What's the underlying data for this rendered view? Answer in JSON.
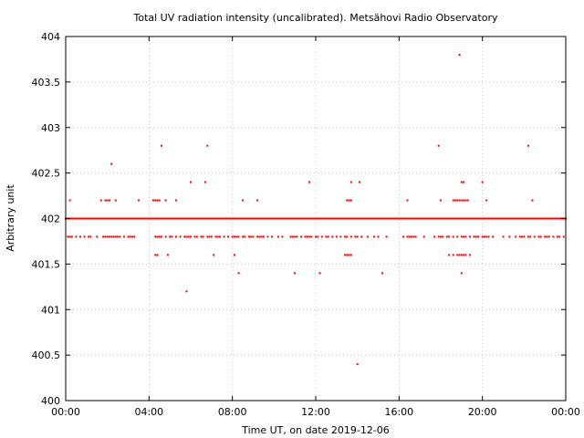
{
  "chart_data": {
    "type": "scatter",
    "title": "Total UV radiation intensity (uncalibrated). Metsähovi Radio Observatory",
    "xlabel": "Time UT, on date 2019-12-06",
    "ylabel": "Arbitrary unit",
    "x_unit": "hours UT",
    "xlim": [
      0,
      24
    ],
    "ylim": [
      400,
      404
    ],
    "x_ticks": [
      0,
      4,
      8,
      12,
      16,
      20,
      24
    ],
    "x_tick_labels": [
      "00:00",
      "04:00",
      "08:00",
      "12:00",
      "16:00",
      "20:00",
      "00:00"
    ],
    "y_ticks": [
      400,
      400.5,
      401,
      401.5,
      402,
      402.5,
      403,
      403.5,
      404
    ],
    "y_tick_labels": [
      "400",
      "400.5",
      "401",
      "401.5",
      "402",
      "402.5",
      "403",
      "403.5",
      "404"
    ],
    "grid": true,
    "legend": "none",
    "marker_color": "#ff0000",
    "baseline": {
      "y": 402.0,
      "x_range": [
        0,
        24
      ],
      "note": "near-continuous samples at 402.0 throughout the day"
    },
    "band_401_8": {
      "y": 401.8,
      "x": [
        0.1,
        0.2,
        0.3,
        0.5,
        0.7,
        0.9,
        1.1,
        1.2,
        1.5,
        1.8,
        1.9,
        2.0,
        2.1,
        2.2,
        2.3,
        2.4,
        2.5,
        2.6,
        2.8,
        3.0,
        3.1,
        3.2,
        3.3,
        4.3,
        4.4,
        4.5,
        4.6,
        4.8,
        5.0,
        5.1,
        5.3,
        5.5,
        5.7,
        5.8,
        5.9,
        6.0,
        6.2,
        6.3,
        6.5,
        6.6,
        6.8,
        6.9,
        7.0,
        7.2,
        7.3,
        7.4,
        7.6,
        7.8,
        8.0,
        8.1,
        8.2,
        8.3,
        8.5,
        8.6,
        8.8,
        8.9,
        9.0,
        9.2,
        9.3,
        9.4,
        9.5,
        9.7,
        9.9,
        10.2,
        10.4,
        10.8,
        10.9,
        11.0,
        11.1,
        11.3,
        11.5,
        11.6,
        11.7,
        11.8,
        12.0,
        12.1,
        12.3,
        12.5,
        12.6,
        12.8,
        13.0,
        13.2,
        13.4,
        13.5,
        13.7,
        13.9,
        14.0,
        14.2,
        14.5,
        14.8,
        15.0,
        15.4,
        16.2,
        16.4,
        16.5,
        16.6,
        16.7,
        16.8,
        17.2,
        17.7,
        17.9,
        18.0,
        18.1,
        18.3,
        18.4,
        18.6,
        18.8,
        19.0,
        19.1,
        19.2,
        19.4,
        19.6,
        19.7,
        19.8,
        20.0,
        20.1,
        20.2,
        20.3,
        20.5,
        21.0,
        21.3,
        21.6,
        21.8,
        21.9,
        22.0,
        22.2,
        22.3,
        22.5,
        22.7,
        22.8,
        23.0,
        23.1,
        23.2,
        23.4,
        23.6,
        23.7,
        23.9
      ]
    },
    "band_402_2": {
      "y": 402.2,
      "x": [
        0.2,
        1.7,
        1.9,
        2.0,
        2.1,
        2.4,
        3.5,
        4.2,
        4.3,
        4.4,
        4.5,
        4.8,
        5.3,
        8.5,
        9.2,
        13.5,
        13.6,
        13.7,
        16.4,
        18.0,
        18.6,
        18.7,
        18.8,
        18.9,
        19.0,
        19.1,
        19.2,
        19.3,
        20.2,
        22.4
      ]
    },
    "band_401_6": {
      "y": 401.6,
      "x": [
        4.3,
        4.4,
        4.9,
        7.1,
        8.1,
        13.4,
        13.5,
        13.6,
        13.7,
        18.4,
        18.6,
        18.8,
        18.9,
        19.0,
        19.1,
        19.2,
        19.4
      ]
    },
    "outliers": [
      {
        "x": 2.2,
        "y": 402.6
      },
      {
        "x": 4.6,
        "y": 402.8
      },
      {
        "x": 6.0,
        "y": 402.4
      },
      {
        "x": 6.7,
        "y": 402.4
      },
      {
        "x": 6.8,
        "y": 402.8
      },
      {
        "x": 5.8,
        "y": 401.2
      },
      {
        "x": 8.3,
        "y": 401.4
      },
      {
        "x": 11.0,
        "y": 401.4
      },
      {
        "x": 11.7,
        "y": 402.4
      },
      {
        "x": 12.2,
        "y": 401.4
      },
      {
        "x": 13.7,
        "y": 402.4
      },
      {
        "x": 14.1,
        "y": 402.4
      },
      {
        "x": 14.0,
        "y": 400.4
      },
      {
        "x": 15.2,
        "y": 401.4
      },
      {
        "x": 17.9,
        "y": 402.8
      },
      {
        "x": 18.9,
        "y": 403.8
      },
      {
        "x": 19.0,
        "y": 402.4
      },
      {
        "x": 19.1,
        "y": 402.4
      },
      {
        "x": 19.0,
        "y": 401.4
      },
      {
        "x": 20.0,
        "y": 402.4
      },
      {
        "x": 22.2,
        "y": 402.8
      }
    ]
  }
}
